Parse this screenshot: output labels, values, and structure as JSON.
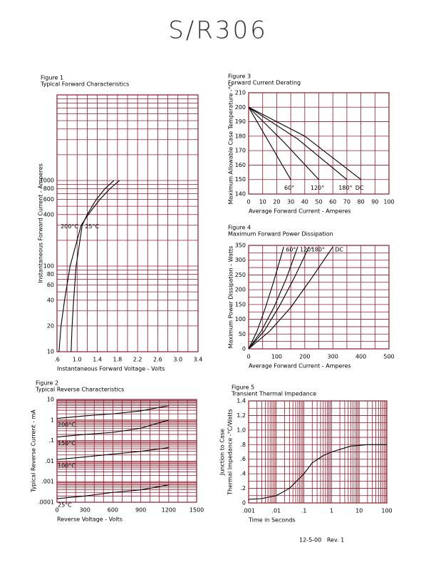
{
  "header": {
    "title": "S/R306"
  },
  "footer": "12-5-00   Rev. 1",
  "chart_data": [
    {
      "type": "line",
      "title": "Figure 1",
      "subtitle": "Typical Forward Characteristics",
      "xlabel": "Instantaneous Forward Voltage - Volts",
      "ylabel": "Instantaneous Forward Current - Amperes",
      "yscale": "log",
      "grid_color": "#8b1c2c",
      "xlim": [
        0.6,
        3.4
      ],
      "ylim": [
        10,
        10000
      ],
      "xticks": [
        {
          "value": 0.6,
          "label": ".6"
        },
        {
          "value": 1,
          "label": "1.0"
        },
        1.4,
        1.8,
        2.2,
        2.6,
        {
          "value": 3,
          "label": "3.0"
        },
        3.4
      ],
      "yticks": [
        10,
        20,
        40,
        60,
        80,
        100,
        400,
        600,
        800,
        1000
      ],
      "xgrid": [
        0.6,
        0.8,
        1,
        1.2,
        1.4,
        1.6,
        1.8,
        2,
        2.2,
        2.4,
        2.6,
        2.8,
        3,
        3.2,
        3.4
      ],
      "ygrid": [
        10,
        20,
        30,
        40,
        50,
        60,
        70,
        80,
        90,
        100,
        200,
        300,
        400,
        500,
        600,
        700,
        800,
        900,
        1000,
        2000,
        3000,
        4000,
        5000,
        6000,
        7000,
        8000,
        9000,
        10000
      ],
      "series": [
        {
          "name": "200°C",
          "color": "#000000",
          "x": [
            0.64,
            0.68,
            0.75,
            0.86,
            1.08,
            1.22,
            1.45,
            1.65,
            1.84
          ],
          "values": [
            10,
            20,
            40,
            100,
            300,
            400,
            600,
            800,
            1000
          ]
        },
        {
          "name": "25°C",
          "color": "#000000",
          "x": [
            0.88,
            0.9,
            0.93,
            0.98,
            1.1,
            1.2,
            1.38,
            1.55,
            1.73
          ],
          "values": [
            10,
            20,
            40,
            100,
            300,
            400,
            600,
            800,
            1000
          ]
        }
      ]
    },
    {
      "type": "line",
      "title": "Figure 2",
      "subtitle": "Typical Reverse Characteristics",
      "xlabel": "Reverse Voltage - Volts",
      "ylabel": "Typical Reverse Current - mA",
      "yscale": "log",
      "grid_color": "#8b1c2c",
      "xlim": [
        0,
        1500
      ],
      "ylim": [
        0.0001,
        10
      ],
      "xticks": [
        0,
        300,
        600,
        900,
        1200,
        1500
      ],
      "yticks": [
        10,
        1,
        {
          "value": 0.1,
          "label": ".1"
        },
        {
          "value": 0.01,
          "label": ".01"
        },
        {
          "value": 0.001,
          "label": ".001"
        },
        {
          "value": 0.0001,
          "label": ".0001"
        }
      ],
      "xgrid": [
        0,
        100,
        200,
        300,
        400,
        500,
        600,
        700,
        800,
        900,
        1000,
        1100,
        1200,
        1300,
        1400,
        1500
      ],
      "ygrid": [
        0.0001,
        0.0002,
        0.0003,
        0.0004,
        0.0005,
        0.0006,
        0.0007,
        0.0008,
        0.0009,
        0.001,
        0.002,
        0.003,
        0.004,
        0.005,
        0.006,
        0.007,
        0.008,
        0.009,
        0.01,
        0.02,
        0.03,
        0.04,
        0.05,
        0.06,
        0.07,
        0.08,
        0.09,
        0.1,
        0.2,
        0.3,
        0.4,
        0.5,
        0.6,
        0.7,
        0.8,
        0.9,
        1,
        2,
        3,
        4,
        5,
        6,
        7,
        8,
        9,
        10
      ],
      "series": [
        {
          "name": "200°C",
          "color": "#000000",
          "x": [
            0,
            300,
            600,
            900,
            1200
          ],
          "values": [
            1.2,
            1.6,
            2,
            2.8,
            5
          ]
        },
        {
          "name": "150°C",
          "color": "#000000",
          "x": [
            0,
            300,
            600,
            900,
            1200
          ],
          "values": [
            0.15,
            0.2,
            0.25,
            0.4,
            1
          ]
        },
        {
          "name": "100°C",
          "color": "#000000",
          "x": [
            0,
            300,
            600,
            900,
            1200
          ],
          "values": [
            0.012,
            0.016,
            0.022,
            0.03,
            0.045
          ]
        },
        {
          "name": "25°C",
          "color": "#000000",
          "x": [
            0,
            300,
            600,
            900,
            1200
          ],
          "values": [
            0.00015,
            0.0002,
            0.0003,
            0.0004,
            0.0007
          ]
        }
      ]
    },
    {
      "type": "line",
      "title": "Figure 3",
      "subtitle": "Forward Current Derating",
      "xlabel": "Average Forward Current - Amperes",
      "ylabel": "Maximum Allowable Case Temperature -°C",
      "grid": true,
      "grid_color": "#8b1c2c",
      "xlim": [
        0,
        100
      ],
      "ylim": [
        140,
        210
      ],
      "xticks": [
        0,
        10,
        20,
        30,
        40,
        50,
        60,
        70,
        80,
        90,
        100
      ],
      "yticks": [
        140,
        150,
        160,
        170,
        180,
        190,
        200,
        210
      ],
      "series": [
        {
          "name": "60°",
          "color": "#000000",
          "x": [
            0,
            15,
            30
          ],
          "values": [
            200,
            175,
            150
          ]
        },
        {
          "name": "120°",
          "color": "#000000",
          "x": [
            0,
            25,
            50
          ],
          "values": [
            200,
            176,
            150
          ]
        },
        {
          "name": "180°",
          "color": "#000000",
          "x": [
            0,
            35,
            70
          ],
          "values": [
            200,
            178,
            150
          ]
        },
        {
          "name": "DC",
          "color": "#000000",
          "x": [
            0,
            40,
            80
          ],
          "values": [
            200,
            180,
            150
          ]
        }
      ]
    },
    {
      "type": "line",
      "title": "Figure 4",
      "subtitle": "Maximum Forward Power Dissipation",
      "xlabel": "Average Forward Current - Amperes",
      "ylabel": "Maximum Power Dissipation - Watts",
      "grid_color": "#8b1c2c",
      "xlim": [
        0,
        500
      ],
      "ylim": [
        0,
        350
      ],
      "xticks": [
        0,
        100,
        200,
        300,
        400,
        500
      ],
      "yticks": [
        0,
        50,
        100,
        150,
        200,
        250,
        300,
        350
      ],
      "xgrid": [
        0,
        50,
        100,
        150,
        200,
        250,
        300,
        350,
        400,
        450,
        500
      ],
      "ygrid": [
        0,
        25,
        50,
        75,
        100,
        125,
        150,
        175,
        200,
        225,
        250,
        275,
        300,
        325,
        350
      ],
      "series": [
        {
          "name": "60°",
          "color": "#000000",
          "x": [
            0,
            30,
            60,
            90,
            125
          ],
          "values": [
            0,
            60,
            140,
            230,
            345
          ]
        },
        {
          "name": "120°",
          "color": "#000000",
          "x": [
            0,
            45,
            90,
            135,
            175
          ],
          "values": [
            0,
            60,
            140,
            240,
            345
          ]
        },
        {
          "name": "180°",
          "color": "#000000",
          "x": [
            0,
            55,
            110,
            165,
            215
          ],
          "values": [
            0,
            60,
            145,
            245,
            345
          ]
        },
        {
          "name": "DC",
          "color": "#000000",
          "x": [
            0,
            75,
            150,
            225,
            300
          ],
          "values": [
            0,
            60,
            140,
            240,
            345
          ]
        }
      ]
    },
    {
      "type": "line",
      "title": "Figure 5",
      "subtitle": "Transient Thermal Impedance",
      "xlabel": "Time in Seconds",
      "ylabel": [
        "Junction to Case",
        "Thermal Impedance -°C/Watts"
      ],
      "xscale": "log",
      "grid_color": "#8b1c2c",
      "color": "#000000",
      "xlim": [
        0.001,
        100
      ],
      "ylim": [
        0,
        1.4
      ],
      "xticks": [
        {
          "value": 0.001,
          "label": ".001"
        },
        {
          "value": 0.01,
          "label": ".01"
        },
        {
          "value": 0.1,
          "label": ".1"
        },
        1,
        10,
        100
      ],
      "yticks": [
        0,
        {
          "value": 0.2,
          "label": ".2"
        },
        {
          "value": 0.4,
          "label": ".4"
        },
        {
          "value": 0.6,
          "label": ".6"
        },
        {
          "value": 0.8,
          "label": ".8"
        },
        {
          "value": 1,
          "label": "1.0"
        },
        1.2,
        1.4
      ],
      "xgrid": [
        0.001,
        0.002,
        0.003,
        0.004,
        0.005,
        0.006,
        0.007,
        0.008,
        0.009,
        0.01,
        0.02,
        0.03,
        0.04,
        0.05,
        0.06,
        0.07,
        0.08,
        0.09,
        0.1,
        0.2,
        0.3,
        0.4,
        0.5,
        0.6,
        0.7,
        0.8,
        0.9,
        1,
        2,
        3,
        4,
        5,
        6,
        7,
        8,
        9,
        10,
        20,
        30,
        40,
        50,
        60,
        70,
        80,
        90,
        100
      ],
      "ygrid": [
        0,
        0.1,
        0.2,
        0.3,
        0.4,
        0.5,
        0.6,
        0.7,
        0.8,
        0.9,
        1,
        1.1,
        1.2,
        1.3,
        1.4
      ],
      "x": [
        0.001,
        0.003,
        0.01,
        0.03,
        0.1,
        0.2,
        0.5,
        1,
        5,
        20,
        100
      ],
      "values": [
        0.05,
        0.06,
        0.1,
        0.2,
        0.4,
        0.55,
        0.65,
        0.7,
        0.78,
        0.8,
        0.8
      ]
    }
  ]
}
